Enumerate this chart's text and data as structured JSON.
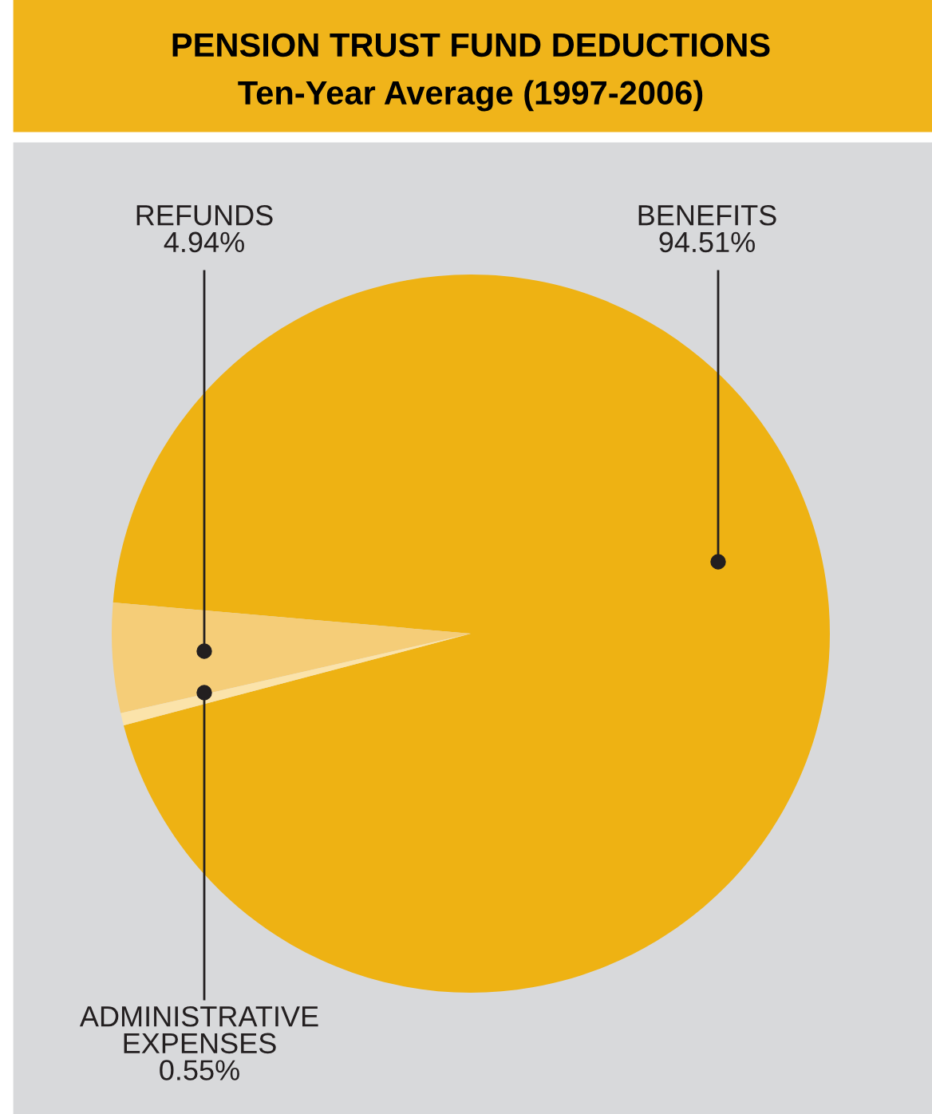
{
  "chart_data": {
    "type": "pie",
    "title": "PENSION TRUST FUND DEDUCTIONS",
    "subtitle": "Ten-Year Average (1997-2006)",
    "categories": [
      "BENEFITS",
      "REFUNDS",
      "ADMINISTRATIVE\nEXPENSES"
    ],
    "values": [
      94.51,
      4.94,
      0.55
    ],
    "colors": [
      "#eeb213",
      "#f5cd78",
      "#fbe3aa"
    ],
    "value_labels": [
      "94.51%",
      "4.94%",
      "0.55%"
    ]
  }
}
